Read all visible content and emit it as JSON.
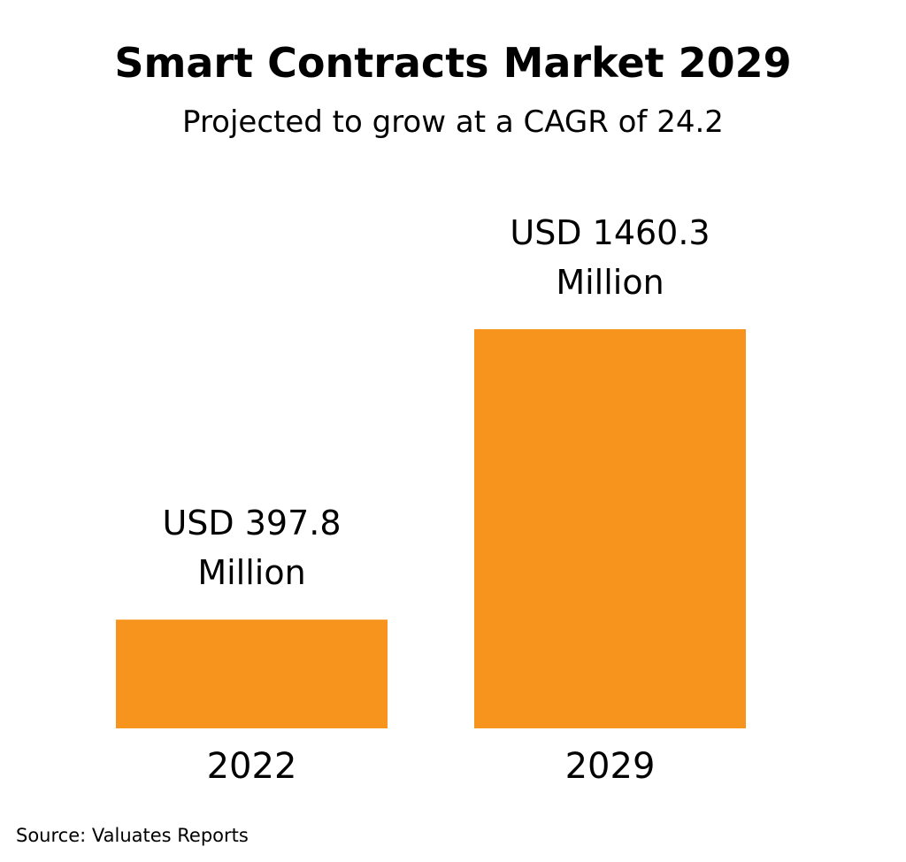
{
  "chart_data": {
    "type": "bar",
    "title": "Smart Contracts Market 2029",
    "subtitle": "Projected to grow at a CAGR of 24.2",
    "categories": [
      "2022",
      "2029"
    ],
    "values": [
      397.8,
      1460.3
    ],
    "data_labels": [
      [
        "USD 397.8",
        "Million"
      ],
      [
        "USD 1460.3",
        "Million"
      ]
    ],
    "unit": "USD Million",
    "xlabel": "",
    "ylabel": "",
    "grid": false,
    "axes_visible": false,
    "bar_color": "#F7941D"
  },
  "source": "Source: Valuates Reports"
}
